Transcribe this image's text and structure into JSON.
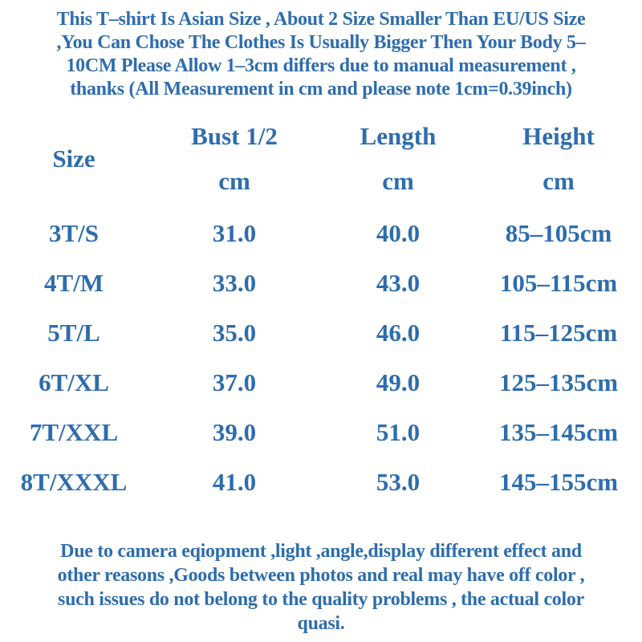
{
  "colors": {
    "text": "#2e6dad",
    "background": "#ffffff"
  },
  "header_note": {
    "lines": [
      "This T–shirt Is Asian Size , About 2 Size Smaller Than EU/US Size",
      ",You Can Chose The Clothes Is Usually Bigger Then Your Body 5–",
      "10CM Please Allow 1–3cm differs due to manual measurement ,",
      "thanks (All Measurement in cm and please note 1cm=0.39inch)"
    ]
  },
  "size_table": {
    "columns": [
      {
        "label": "Size",
        "sub": ""
      },
      {
        "label": "Bust 1/2",
        "sub": "cm"
      },
      {
        "label": "Length",
        "sub": "cm"
      },
      {
        "label": "Height",
        "sub": "cm"
      }
    ],
    "rows": [
      {
        "size": "3T/S",
        "bust_cm": "31.0",
        "length_cm": "40.0",
        "height_range": "85–105cm"
      },
      {
        "size": "4T/M",
        "bust_cm": "33.0",
        "length_cm": "43.0",
        "height_range": "105–115cm"
      },
      {
        "size": "5T/L",
        "bust_cm": "35.0",
        "length_cm": "46.0",
        "height_range": "115–125cm"
      },
      {
        "size": "6T/XL",
        "bust_cm": "37.0",
        "length_cm": "49.0",
        "height_range": "125–135cm"
      },
      {
        "size": "7T/XXL",
        "bust_cm": "39.0",
        "length_cm": "51.0",
        "height_range": "135–145cm"
      },
      {
        "size": "8T/XXXL",
        "bust_cm": "41.0",
        "length_cm": "53.0",
        "height_range": "145–155cm"
      }
    ]
  },
  "footer_note": {
    "lines": [
      "Due to camera eqiopment ,light ,angle,display different effect and",
      "other reasons ,Goods between photos and real may have off color ,",
      "such issues do not belong to the quality problems , the actual color",
      "quasi."
    ]
  }
}
